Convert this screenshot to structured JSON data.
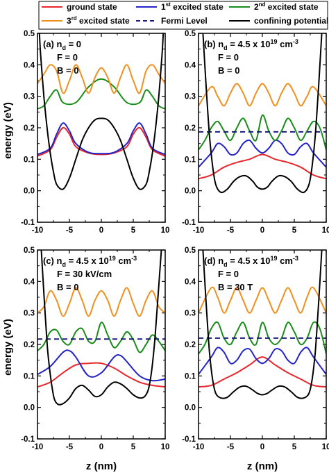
{
  "figure": {
    "ylabel": "energy (eV)",
    "xlabel": "z (nm)"
  },
  "legend": {
    "entries": [
      {
        "label": "ground state",
        "sup": "",
        "suffix": "",
        "color": "#e8262b",
        "dash": false
      },
      {
        "label": "1",
        "sup": "st",
        "suffix": " excited state",
        "color": "#2323c8",
        "dash": false
      },
      {
        "label": "2",
        "sup": "nd",
        "suffix": " excited state",
        "color": "#1a8c1a",
        "dash": false
      },
      {
        "label": "3",
        "sup": "rd",
        "suffix": " excited state",
        "color": "#f0901e",
        "dash": false
      },
      {
        "label": "Fermi Level",
        "sup": "",
        "suffix": "",
        "color": "#1a1a7a",
        "dash": true
      },
      {
        "label": "confining potential",
        "sup": "",
        "suffix": "",
        "color": "#000000",
        "dash": false
      }
    ]
  },
  "chart_data": [
    {
      "type": "line",
      "panel": "a",
      "annotations": [
        "(a) n",
        "d",
        " = 0",
        "F = 0",
        "B = 0"
      ],
      "xlim": [
        -10,
        10
      ],
      "ylim": [
        -0.1,
        0.5
      ],
      "xticks": [
        "-10",
        "-5",
        "0",
        "5",
        "10"
      ],
      "yticks": [
        "-0.1",
        "0.0",
        "0.1",
        "0.2",
        "0.3",
        "0.4",
        "0.5"
      ],
      "series": [
        {
          "key": "ground",
          "color": "#e8262b",
          "dash": false,
          "x": [
            -10,
            -8,
            -7,
            -6,
            -5,
            -4,
            -2,
            0,
            2,
            4,
            5,
            6,
            7,
            8,
            10
          ],
          "y": [
            0.11,
            0.13,
            0.17,
            0.2,
            0.18,
            0.14,
            0.12,
            0.115,
            0.12,
            0.14,
            0.18,
            0.2,
            0.17,
            0.13,
            0.11
          ]
        },
        {
          "key": "first",
          "color": "#2323c8",
          "dash": false,
          "x": [
            -10,
            -8,
            -7,
            -6,
            -5,
            -4,
            -2,
            0,
            2,
            4,
            5,
            6,
            7,
            8,
            10
          ],
          "y": [
            0.115,
            0.135,
            0.18,
            0.215,
            0.19,
            0.15,
            0.122,
            0.118,
            0.122,
            0.15,
            0.19,
            0.215,
            0.18,
            0.135,
            0.115
          ]
        },
        {
          "key": "second",
          "color": "#1a8c1a",
          "dash": false,
          "x": [
            -10,
            -9,
            -8,
            -7,
            -6,
            -4,
            -2,
            0,
            2,
            4,
            6,
            7,
            8,
            9,
            10
          ],
          "y": [
            0.26,
            0.27,
            0.3,
            0.32,
            0.28,
            0.28,
            0.33,
            0.355,
            0.33,
            0.28,
            0.28,
            0.32,
            0.3,
            0.27,
            0.26
          ]
        },
        {
          "key": "third",
          "color": "#f0901e",
          "dash": false,
          "x": [
            -10,
            -9,
            -8,
            -7,
            -6,
            -5,
            -4,
            -3,
            -2,
            -1,
            0,
            1,
            2,
            3,
            4,
            5,
            6,
            7,
            8,
            9,
            10
          ],
          "y": [
            0.34,
            0.37,
            0.4,
            0.38,
            0.31,
            0.35,
            0.4,
            0.36,
            0.31,
            0.36,
            0.39,
            0.36,
            0.31,
            0.36,
            0.4,
            0.35,
            0.31,
            0.38,
            0.4,
            0.37,
            0.34
          ]
        },
        {
          "key": "potential",
          "color": "#000000",
          "dash": false,
          "x": [
            -9.7,
            -9.5,
            -9,
            -8.5,
            -8,
            -7.5,
            -7,
            -6,
            -5,
            -4,
            -3,
            -2,
            -1,
            0,
            1,
            2,
            3,
            4,
            5,
            6,
            7,
            7.5,
            8,
            8.5,
            9,
            9.5,
            9.7
          ],
          "y": [
            0.5,
            0.43,
            0.3,
            0.2,
            0.12,
            0.06,
            0.02,
            0.005,
            0.04,
            0.1,
            0.16,
            0.2,
            0.225,
            0.23,
            0.225,
            0.2,
            0.16,
            0.1,
            0.04,
            0.005,
            0.02,
            0.06,
            0.12,
            0.2,
            0.3,
            0.43,
            0.5
          ]
        }
      ]
    },
    {
      "type": "line",
      "panel": "b",
      "annotations": [
        "(b) n",
        "d",
        " = 4.5 x 10",
        "19",
        " cm",
        "-3",
        "F = 0",
        "B = 0"
      ],
      "xlim": [
        -10,
        10
      ],
      "ylim": [
        -0.1,
        0.5
      ],
      "xticks": [
        "-10",
        "-5",
        "0",
        "5",
        "10"
      ],
      "yticks": [
        "-0.1",
        "0.0",
        "0.1",
        "0.2",
        "0.3",
        "0.4",
        "0.5"
      ],
      "series": [
        {
          "key": "ground",
          "color": "#e8262b",
          "dash": false,
          "x": [
            -10,
            -8,
            -6,
            -4,
            -2,
            0,
            2,
            4,
            6,
            8,
            10
          ],
          "y": [
            0.038,
            0.05,
            0.075,
            0.09,
            0.1,
            0.115,
            0.1,
            0.09,
            0.075,
            0.05,
            0.038
          ]
        },
        {
          "key": "first",
          "color": "#2323c8",
          "dash": false,
          "x": [
            -10,
            -8,
            -7,
            -6,
            -5,
            -4,
            -3,
            -2,
            -1,
            0,
            1,
            2,
            3,
            4,
            5,
            6,
            7,
            8,
            10
          ],
          "y": [
            0.075,
            0.12,
            0.15,
            0.14,
            0.115,
            0.12,
            0.15,
            0.16,
            0.135,
            0.12,
            0.135,
            0.16,
            0.15,
            0.12,
            0.115,
            0.14,
            0.15,
            0.12,
            0.075
          ]
        },
        {
          "key": "second",
          "color": "#1a8c1a",
          "dash": false,
          "x": [
            -10,
            -9,
            -8,
            -7,
            -6,
            -5,
            -4,
            -3,
            -2,
            -1,
            0,
            1,
            2,
            3,
            4,
            5,
            6,
            7,
            8,
            9,
            10
          ],
          "y": [
            0.13,
            0.16,
            0.2,
            0.22,
            0.19,
            0.16,
            0.2,
            0.23,
            0.19,
            0.16,
            0.24,
            0.19,
            0.16,
            0.19,
            0.23,
            0.2,
            0.16,
            0.19,
            0.22,
            0.2,
            0.13
          ]
        },
        {
          "key": "third",
          "color": "#f0901e",
          "dash": false,
          "x": [
            -10,
            -8,
            -7,
            -6,
            -5,
            -4,
            -3,
            -2,
            -1,
            0,
            1,
            2,
            3,
            4,
            5,
            6,
            7,
            8,
            10
          ],
          "y": [
            0.27,
            0.33,
            0.3,
            0.27,
            0.31,
            0.34,
            0.31,
            0.27,
            0.31,
            0.34,
            0.31,
            0.27,
            0.31,
            0.34,
            0.31,
            0.27,
            0.3,
            0.33,
            0.27
          ]
        },
        {
          "key": "fermi",
          "color": "#1a1a7a",
          "dash": true,
          "x": [
            -10,
            10
          ],
          "y": [
            0.187,
            0.187
          ]
        },
        {
          "key": "potential",
          "color": "#000000",
          "dash": false,
          "x": [
            -9.3,
            -8.8,
            -8.3,
            -7.8,
            -7.3,
            -6.5,
            -5.5,
            -4.5,
            -3.5,
            -2.5,
            -1.5,
            -0.8,
            0,
            0.8,
            1.5,
            2.5,
            3.5,
            4.5,
            5.5,
            6.5,
            7.3,
            7.8,
            8.3,
            8.8,
            9.3
          ],
          "y": [
            0.5,
            0.33,
            0.18,
            0.08,
            0.02,
            -0.005,
            0.005,
            0.03,
            0.045,
            0.047,
            0.03,
            0.012,
            0.005,
            0.012,
            0.03,
            0.047,
            0.045,
            0.03,
            0.005,
            -0.005,
            0.02,
            0.08,
            0.18,
            0.33,
            0.5
          ]
        }
      ]
    },
    {
      "type": "line",
      "panel": "c",
      "annotations": [
        "(c) n",
        "d",
        " = 4.5 x 10",
        "19",
        " cm",
        "-3",
        "F = 30 kV/cm",
        "B = 0"
      ],
      "xlim": [
        -10,
        10
      ],
      "ylim": [
        -0.1,
        0.5
      ],
      "xticks": [
        "-10",
        "-5",
        "0",
        "5",
        "10"
      ],
      "yticks": [
        "-0.1",
        "0.0",
        "0.1",
        "0.2",
        "0.3",
        "0.4",
        "0.5"
      ],
      "series": [
        {
          "key": "ground",
          "color": "#e8262b",
          "dash": false,
          "x": [
            -10,
            -8,
            -6,
            -4,
            -2,
            0,
            2,
            4,
            6,
            8,
            10
          ],
          "y": [
            0.065,
            0.08,
            0.11,
            0.135,
            0.14,
            0.14,
            0.125,
            0.1,
            0.08,
            0.07,
            0.065
          ]
        },
        {
          "key": "first",
          "color": "#2323c8",
          "dash": false,
          "x": [
            -10,
            -8,
            -6,
            -5,
            -4,
            -2,
            0,
            2,
            3,
            4,
            6,
            8,
            10
          ],
          "y": [
            0.105,
            0.13,
            0.175,
            0.18,
            0.16,
            0.1,
            0.11,
            0.16,
            0.165,
            0.145,
            0.1,
            0.085,
            0.09
          ]
        },
        {
          "key": "second",
          "color": "#1a8c1a",
          "dash": false,
          "x": [
            -10,
            -9,
            -8,
            -7,
            -6,
            -5,
            -4,
            -3,
            -2,
            -1,
            0,
            1,
            2,
            3,
            4,
            5,
            6,
            7,
            8,
            9,
            10
          ],
          "y": [
            0.18,
            0.2,
            0.24,
            0.245,
            0.21,
            0.2,
            0.24,
            0.25,
            0.21,
            0.21,
            0.27,
            0.23,
            0.19,
            0.21,
            0.24,
            0.215,
            0.175,
            0.2,
            0.23,
            0.21,
            0.18
          ]
        },
        {
          "key": "third",
          "color": "#f0901e",
          "dash": false,
          "x": [
            -10,
            -9,
            -8,
            -7,
            -6,
            -5,
            -4,
            -3,
            -2,
            -1,
            0,
            1,
            2,
            3,
            4,
            5,
            6,
            7,
            8,
            9,
            10
          ],
          "y": [
            0.3,
            0.32,
            0.37,
            0.34,
            0.29,
            0.33,
            0.38,
            0.34,
            0.29,
            0.34,
            0.37,
            0.34,
            0.29,
            0.34,
            0.38,
            0.33,
            0.29,
            0.34,
            0.37,
            0.32,
            0.3
          ]
        },
        {
          "key": "fermi",
          "color": "#1a1a7a",
          "dash": true,
          "x": [
            -10,
            10
          ],
          "y": [
            0.217,
            0.217
          ]
        },
        {
          "key": "potential",
          "color": "#000000",
          "dash": false,
          "x": [
            -9.4,
            -8.9,
            -8.4,
            -7.9,
            -7.4,
            -6.8,
            -6,
            -5,
            -4,
            -3,
            -2,
            -1,
            0,
            1,
            2,
            3,
            4,
            5,
            6,
            6.8,
            7.4,
            7.9,
            8.4,
            8.9,
            9.4
          ],
          "y": [
            0.5,
            0.33,
            0.18,
            0.09,
            0.03,
            0.01,
            0.012,
            0.03,
            0.06,
            0.07,
            0.055,
            0.035,
            0.04,
            0.065,
            0.08,
            0.075,
            0.06,
            0.04,
            0.03,
            0.035,
            0.06,
            0.12,
            0.22,
            0.36,
            0.5
          ]
        }
      ]
    },
    {
      "type": "line",
      "panel": "d",
      "annotations": [
        "(d) n",
        "d",
        " = 4.5 x 10",
        "19",
        " cm",
        "-3",
        "F = 0",
        "B = 30 T"
      ],
      "xlim": [
        -10,
        10
      ],
      "ylim": [
        -0.1,
        0.5
      ],
      "xticks": [
        "-10",
        "-5",
        "0",
        "5",
        "10"
      ],
      "yticks": [
        "-0.1",
        "0.0",
        "0.1",
        "0.2",
        "0.3",
        "0.4",
        "0.5"
      ],
      "series": [
        {
          "key": "ground",
          "color": "#e8262b",
          "dash": false,
          "x": [
            -10,
            -8,
            -6,
            -4,
            -2,
            0,
            2,
            4,
            6,
            8,
            10
          ],
          "y": [
            0.065,
            0.07,
            0.09,
            0.11,
            0.135,
            0.16,
            0.135,
            0.11,
            0.09,
            0.07,
            0.065
          ]
        },
        {
          "key": "first",
          "color": "#2323c8",
          "dash": false,
          "x": [
            -10,
            -8,
            -7,
            -6,
            -5,
            -4,
            -3,
            -2,
            -1,
            0,
            1,
            2,
            3,
            4,
            5,
            6,
            7,
            8,
            10
          ],
          "y": [
            0.105,
            0.16,
            0.19,
            0.175,
            0.14,
            0.15,
            0.18,
            0.185,
            0.155,
            0.14,
            0.155,
            0.185,
            0.18,
            0.15,
            0.14,
            0.175,
            0.19,
            0.16,
            0.105
          ]
        },
        {
          "key": "second",
          "color": "#1a8c1a",
          "dash": false,
          "x": [
            -10,
            -9,
            -8,
            -7,
            -6,
            -5,
            -4,
            -3,
            -2,
            -1,
            0,
            1,
            2,
            3,
            4,
            5,
            6,
            7,
            8,
            9,
            10
          ],
          "y": [
            0.17,
            0.2,
            0.25,
            0.27,
            0.22,
            0.2,
            0.24,
            0.27,
            0.22,
            0.2,
            0.27,
            0.22,
            0.2,
            0.22,
            0.27,
            0.24,
            0.2,
            0.22,
            0.27,
            0.25,
            0.17
          ]
        },
        {
          "key": "third",
          "color": "#f0901e",
          "dash": false,
          "x": [
            -10,
            -8,
            -7,
            -6,
            -5,
            -4,
            -3,
            -2,
            -1,
            0,
            1,
            2,
            3,
            4,
            5,
            6,
            7,
            8,
            10
          ],
          "y": [
            0.3,
            0.38,
            0.35,
            0.3,
            0.34,
            0.38,
            0.34,
            0.3,
            0.34,
            0.38,
            0.34,
            0.3,
            0.34,
            0.38,
            0.34,
            0.3,
            0.35,
            0.38,
            0.3
          ]
        },
        {
          "key": "fermi",
          "color": "#1a1a7a",
          "dash": true,
          "x": [
            -10,
            10
          ],
          "y": [
            0.22,
            0.22
          ]
        },
        {
          "key": "potential",
          "color": "#000000",
          "dash": false,
          "x": [
            -9.3,
            -8.8,
            -8.3,
            -7.8,
            -7.3,
            -6.5,
            -5.5,
            -4.5,
            -3.5,
            -2.5,
            -1.5,
            -0.8,
            0,
            0.8,
            1.5,
            2.5,
            3.5,
            4.5,
            5.5,
            6.5,
            7.3,
            7.8,
            8.3,
            8.8,
            9.3
          ],
          "y": [
            0.5,
            0.33,
            0.18,
            0.09,
            0.045,
            0.03,
            0.032,
            0.05,
            0.065,
            0.067,
            0.055,
            0.045,
            0.04,
            0.045,
            0.055,
            0.067,
            0.065,
            0.05,
            0.032,
            0.03,
            0.045,
            0.09,
            0.18,
            0.33,
            0.5
          ]
        }
      ]
    }
  ]
}
